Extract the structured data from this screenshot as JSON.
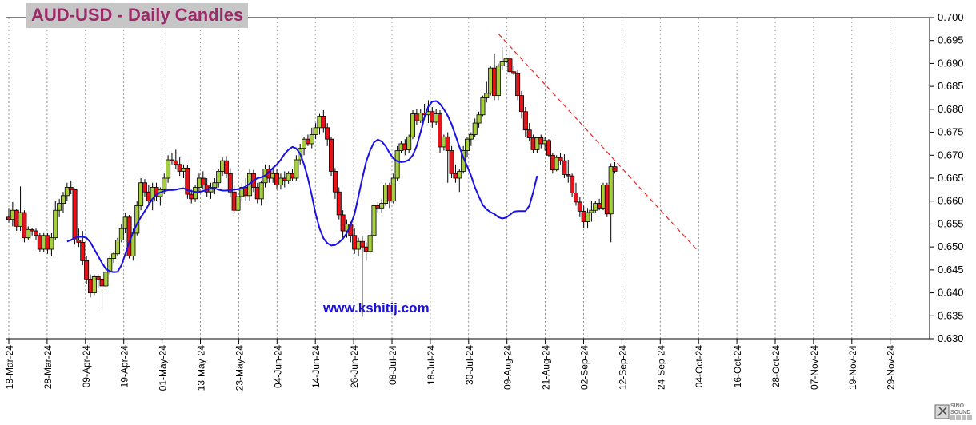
{
  "title": "AUD-USD - Daily Candles",
  "watermark_url": "www.kshitij.com",
  "logo_text": "SINO SOUND",
  "colors": {
    "bull": "#a6cf3f",
    "bear": "#e8121a",
    "ma_line": "#1a10e8",
    "trendline": "#ee2222",
    "grid": "#7f7f7f",
    "title_text": "#9c2a6a",
    "title_bg": "#c6c6c6",
    "url_text": "#1a10d8"
  },
  "chart_data": {
    "type": "candlestick",
    "title": "AUD-USD - Daily Candles",
    "y_axis": {
      "position": "right",
      "min": 0.63,
      "max": 0.7,
      "step": 0.005,
      "tick_labels": [
        "0.700",
        "0.695",
        "0.690",
        "0.685",
        "0.680",
        "0.675",
        "0.670",
        "0.665",
        "0.660",
        "0.655",
        "0.650",
        "0.645",
        "0.640",
        "0.635",
        "0.630"
      ]
    },
    "x_axis": {
      "tick_labels": [
        "18-Mar-24",
        "28-Mar-24",
        "09-Apr-24",
        "19-Apr-24",
        "01-May-24",
        "13-May-24",
        "23-May-24",
        "04-Jun-24",
        "14-Jun-24",
        "26-Jun-24",
        "08-Jul-24",
        "18-Jul-24",
        "30-Jul-24",
        "09-Aug-24",
        "21-Aug-24",
        "02-Sep-24",
        "12-Sep-24",
        "24-Sep-24",
        "04-Oct-24",
        "16-Oct-24",
        "28-Oct-24",
        "07-Nov-24",
        "19-Nov-24",
        "29-Nov-24"
      ]
    },
    "grid": "vertical dashed at date ticks",
    "candles": [
      {
        "o": 0.6565,
        "h": 0.6585,
        "l": 0.6553,
        "c": 0.656
      },
      {
        "o": 0.656,
        "h": 0.6598,
        "l": 0.6545,
        "c": 0.658
      },
      {
        "o": 0.658,
        "h": 0.6583,
        "l": 0.6535,
        "c": 0.6545
      },
      {
        "o": 0.6545,
        "h": 0.6632,
        "l": 0.6535,
        "c": 0.6575
      },
      {
        "o": 0.6575,
        "h": 0.658,
        "l": 0.651,
        "c": 0.652
      },
      {
        "o": 0.652,
        "h": 0.6545,
        "l": 0.6515,
        "c": 0.6538
      },
      {
        "o": 0.6538,
        "h": 0.6542,
        "l": 0.6525,
        "c": 0.6535
      },
      {
        "o": 0.6535,
        "h": 0.654,
        "l": 0.6515,
        "c": 0.6525
      },
      {
        "o": 0.6525,
        "h": 0.653,
        "l": 0.6488,
        "c": 0.6495
      },
      {
        "o": 0.6495,
        "h": 0.653,
        "l": 0.6488,
        "c": 0.6525
      },
      {
        "o": 0.6525,
        "h": 0.653,
        "l": 0.6485,
        "c": 0.6495
      },
      {
        "o": 0.6495,
        "h": 0.653,
        "l": 0.648,
        "c": 0.652
      },
      {
        "o": 0.652,
        "h": 0.66,
        "l": 0.6515,
        "c": 0.658
      },
      {
        "o": 0.658,
        "h": 0.6605,
        "l": 0.6565,
        "c": 0.6595
      },
      {
        "o": 0.6595,
        "h": 0.662,
        "l": 0.6575,
        "c": 0.6612
      },
      {
        "o": 0.6612,
        "h": 0.664,
        "l": 0.66,
        "c": 0.663
      },
      {
        "o": 0.663,
        "h": 0.6645,
        "l": 0.6615,
        "c": 0.6625
      },
      {
        "o": 0.6625,
        "h": 0.6628,
        "l": 0.6505,
        "c": 0.6515
      },
      {
        "o": 0.6515,
        "h": 0.654,
        "l": 0.65,
        "c": 0.651
      },
      {
        "o": 0.651,
        "h": 0.6535,
        "l": 0.646,
        "c": 0.647
      },
      {
        "o": 0.647,
        "h": 0.648,
        "l": 0.642,
        "c": 0.643
      },
      {
        "o": 0.643,
        "h": 0.644,
        "l": 0.639,
        "c": 0.64
      },
      {
        "o": 0.64,
        "h": 0.644,
        "l": 0.6395,
        "c": 0.6435
      },
      {
        "o": 0.6435,
        "h": 0.644,
        "l": 0.641,
        "c": 0.643
      },
      {
        "o": 0.643,
        "h": 0.644,
        "l": 0.6362,
        "c": 0.6415
      },
      {
        "o": 0.6415,
        "h": 0.645,
        "l": 0.641,
        "c": 0.6445
      },
      {
        "o": 0.6445,
        "h": 0.648,
        "l": 0.644,
        "c": 0.6475
      },
      {
        "o": 0.6475,
        "h": 0.649,
        "l": 0.6465,
        "c": 0.6485
      },
      {
        "o": 0.6485,
        "h": 0.652,
        "l": 0.648,
        "c": 0.6515
      },
      {
        "o": 0.6515,
        "h": 0.655,
        "l": 0.651,
        "c": 0.654
      },
      {
        "o": 0.654,
        "h": 0.6575,
        "l": 0.653,
        "c": 0.6565
      },
      {
        "o": 0.6565,
        "h": 0.657,
        "l": 0.6475,
        "c": 0.648
      },
      {
        "o": 0.648,
        "h": 0.654,
        "l": 0.647,
        "c": 0.653
      },
      {
        "o": 0.653,
        "h": 0.66,
        "l": 0.6525,
        "c": 0.659
      },
      {
        "o": 0.659,
        "h": 0.665,
        "l": 0.658,
        "c": 0.664
      },
      {
        "o": 0.664,
        "h": 0.6648,
        "l": 0.661,
        "c": 0.662
      },
      {
        "o": 0.662,
        "h": 0.6635,
        "l": 0.659,
        "c": 0.66
      },
      {
        "o": 0.66,
        "h": 0.664,
        "l": 0.658,
        "c": 0.663
      },
      {
        "o": 0.663,
        "h": 0.664,
        "l": 0.66,
        "c": 0.661
      },
      {
        "o": 0.661,
        "h": 0.663,
        "l": 0.659,
        "c": 0.6625
      },
      {
        "o": 0.6625,
        "h": 0.666,
        "l": 0.6615,
        "c": 0.665
      },
      {
        "o": 0.665,
        "h": 0.67,
        "l": 0.664,
        "c": 0.669
      },
      {
        "o": 0.669,
        "h": 0.6705,
        "l": 0.668,
        "c": 0.6688
      },
      {
        "o": 0.6688,
        "h": 0.6712,
        "l": 0.667,
        "c": 0.668
      },
      {
        "o": 0.668,
        "h": 0.6695,
        "l": 0.6655,
        "c": 0.6665
      },
      {
        "o": 0.6665,
        "h": 0.668,
        "l": 0.665,
        "c": 0.6672
      },
      {
        "o": 0.6672,
        "h": 0.6678,
        "l": 0.6605,
        "c": 0.6615
      },
      {
        "o": 0.6615,
        "h": 0.6625,
        "l": 0.6595,
        "c": 0.6605
      },
      {
        "o": 0.6605,
        "h": 0.6635,
        "l": 0.6598,
        "c": 0.663
      },
      {
        "o": 0.663,
        "h": 0.666,
        "l": 0.662,
        "c": 0.665
      },
      {
        "o": 0.665,
        "h": 0.6665,
        "l": 0.6625,
        "c": 0.6635
      },
      {
        "o": 0.6635,
        "h": 0.665,
        "l": 0.661,
        "c": 0.662
      },
      {
        "o": 0.662,
        "h": 0.664,
        "l": 0.6605,
        "c": 0.663
      },
      {
        "o": 0.663,
        "h": 0.665,
        "l": 0.6615,
        "c": 0.664
      },
      {
        "o": 0.664,
        "h": 0.667,
        "l": 0.663,
        "c": 0.6665
      },
      {
        "o": 0.6665,
        "h": 0.6695,
        "l": 0.6655,
        "c": 0.6688
      },
      {
        "o": 0.6688,
        "h": 0.6698,
        "l": 0.665,
        "c": 0.666
      },
      {
        "o": 0.666,
        "h": 0.6672,
        "l": 0.661,
        "c": 0.662
      },
      {
        "o": 0.662,
        "h": 0.6635,
        "l": 0.6575,
        "c": 0.658
      },
      {
        "o": 0.658,
        "h": 0.662,
        "l": 0.6575,
        "c": 0.661
      },
      {
        "o": 0.661,
        "h": 0.664,
        "l": 0.66,
        "c": 0.663
      },
      {
        "o": 0.663,
        "h": 0.665,
        "l": 0.66,
        "c": 0.6612
      },
      {
        "o": 0.6612,
        "h": 0.667,
        "l": 0.66,
        "c": 0.666
      },
      {
        "o": 0.666,
        "h": 0.6668,
        "l": 0.662,
        "c": 0.663
      },
      {
        "o": 0.663,
        "h": 0.664,
        "l": 0.6595,
        "c": 0.6605
      },
      {
        "o": 0.6605,
        "h": 0.6645,
        "l": 0.659,
        "c": 0.664
      },
      {
        "o": 0.664,
        "h": 0.668,
        "l": 0.663,
        "c": 0.667
      },
      {
        "o": 0.667,
        "h": 0.6678,
        "l": 0.664,
        "c": 0.665
      },
      {
        "o": 0.665,
        "h": 0.6675,
        "l": 0.664,
        "c": 0.666
      },
      {
        "o": 0.666,
        "h": 0.667,
        "l": 0.6625,
        "c": 0.6635
      },
      {
        "o": 0.6635,
        "h": 0.666,
        "l": 0.6625,
        "c": 0.665
      },
      {
        "o": 0.665,
        "h": 0.6665,
        "l": 0.663,
        "c": 0.6645
      },
      {
        "o": 0.6645,
        "h": 0.6665,
        "l": 0.6638,
        "c": 0.666
      },
      {
        "o": 0.666,
        "h": 0.667,
        "l": 0.6645,
        "c": 0.665
      },
      {
        "o": 0.665,
        "h": 0.67,
        "l": 0.6645,
        "c": 0.669
      },
      {
        "o": 0.669,
        "h": 0.6725,
        "l": 0.668,
        "c": 0.6715
      },
      {
        "o": 0.6715,
        "h": 0.674,
        "l": 0.67,
        "c": 0.6735
      },
      {
        "o": 0.6735,
        "h": 0.6745,
        "l": 0.672,
        "c": 0.6725
      },
      {
        "o": 0.6725,
        "h": 0.676,
        "l": 0.6715,
        "c": 0.6745
      },
      {
        "o": 0.6745,
        "h": 0.677,
        "l": 0.6735,
        "c": 0.676
      },
      {
        "o": 0.676,
        "h": 0.679,
        "l": 0.6745,
        "c": 0.6785
      },
      {
        "o": 0.6785,
        "h": 0.6798,
        "l": 0.675,
        "c": 0.676
      },
      {
        "o": 0.676,
        "h": 0.677,
        "l": 0.672,
        "c": 0.6735
      },
      {
        "o": 0.6735,
        "h": 0.674,
        "l": 0.6655,
        "c": 0.6665
      },
      {
        "o": 0.6665,
        "h": 0.6672,
        "l": 0.6605,
        "c": 0.662
      },
      {
        "o": 0.662,
        "h": 0.663,
        "l": 0.656,
        "c": 0.657
      },
      {
        "o": 0.657,
        "h": 0.658,
        "l": 0.652,
        "c": 0.6535
      },
      {
        "o": 0.6535,
        "h": 0.656,
        "l": 0.652,
        "c": 0.655
      },
      {
        "o": 0.655,
        "h": 0.6555,
        "l": 0.651,
        "c": 0.6525
      },
      {
        "o": 0.6525,
        "h": 0.654,
        "l": 0.6485,
        "c": 0.6495
      },
      {
        "o": 0.6495,
        "h": 0.652,
        "l": 0.648,
        "c": 0.6512
      },
      {
        "o": 0.6512,
        "h": 0.6525,
        "l": 0.6348,
        "c": 0.65
      },
      {
        "o": 0.65,
        "h": 0.651,
        "l": 0.647,
        "c": 0.649
      },
      {
        "o": 0.649,
        "h": 0.653,
        "l": 0.6485,
        "c": 0.6525
      },
      {
        "o": 0.6525,
        "h": 0.66,
        "l": 0.652,
        "c": 0.659
      },
      {
        "o": 0.659,
        "h": 0.6598,
        "l": 0.6575,
        "c": 0.6585
      },
      {
        "o": 0.6585,
        "h": 0.6605,
        "l": 0.6575,
        "c": 0.6595
      },
      {
        "o": 0.6595,
        "h": 0.664,
        "l": 0.659,
        "c": 0.6635
      },
      {
        "o": 0.6635,
        "h": 0.664,
        "l": 0.6585,
        "c": 0.66
      },
      {
        "o": 0.66,
        "h": 0.666,
        "l": 0.6595,
        "c": 0.665
      },
      {
        "o": 0.665,
        "h": 0.672,
        "l": 0.6645,
        "c": 0.671
      },
      {
        "o": 0.671,
        "h": 0.673,
        "l": 0.6705,
        "c": 0.6725
      },
      {
        "o": 0.6725,
        "h": 0.6735,
        "l": 0.67,
        "c": 0.6712
      },
      {
        "o": 0.6712,
        "h": 0.6745,
        "l": 0.6705,
        "c": 0.674
      },
      {
        "o": 0.674,
        "h": 0.6798,
        "l": 0.6735,
        "c": 0.679
      },
      {
        "o": 0.679,
        "h": 0.68,
        "l": 0.6765,
        "c": 0.6775
      },
      {
        "o": 0.6775,
        "h": 0.68,
        "l": 0.677,
        "c": 0.6792
      },
      {
        "o": 0.6792,
        "h": 0.6812,
        "l": 0.678,
        "c": 0.6788
      },
      {
        "o": 0.6788,
        "h": 0.682,
        "l": 0.677,
        "c": 0.6795
      },
      {
        "o": 0.6795,
        "h": 0.6805,
        "l": 0.676,
        "c": 0.6772
      },
      {
        "o": 0.6772,
        "h": 0.68,
        "l": 0.6765,
        "c": 0.679
      },
      {
        "o": 0.679,
        "h": 0.6798,
        "l": 0.6705,
        "c": 0.6718
      },
      {
        "o": 0.6718,
        "h": 0.6745,
        "l": 0.671,
        "c": 0.674
      },
      {
        "o": 0.674,
        "h": 0.675,
        "l": 0.664,
        "c": 0.671
      },
      {
        "o": 0.671,
        "h": 0.672,
        "l": 0.665,
        "c": 0.666
      },
      {
        "o": 0.666,
        "h": 0.668,
        "l": 0.664,
        "c": 0.665
      },
      {
        "o": 0.665,
        "h": 0.667,
        "l": 0.662,
        "c": 0.6665
      },
      {
        "o": 0.6665,
        "h": 0.672,
        "l": 0.666,
        "c": 0.671
      },
      {
        "o": 0.671,
        "h": 0.674,
        "l": 0.6695,
        "c": 0.6735
      },
      {
        "o": 0.6735,
        "h": 0.675,
        "l": 0.672,
        "c": 0.6745
      },
      {
        "o": 0.6745,
        "h": 0.678,
        "l": 0.674,
        "c": 0.677
      },
      {
        "o": 0.677,
        "h": 0.6795,
        "l": 0.676,
        "c": 0.6788
      },
      {
        "o": 0.6788,
        "h": 0.683,
        "l": 0.6785,
        "c": 0.6825
      },
      {
        "o": 0.6825,
        "h": 0.686,
        "l": 0.6815,
        "c": 0.6835
      },
      {
        "o": 0.6835,
        "h": 0.6895,
        "l": 0.683,
        "c": 0.689
      },
      {
        "o": 0.689,
        "h": 0.692,
        "l": 0.682,
        "c": 0.683
      },
      {
        "o": 0.683,
        "h": 0.69,
        "l": 0.682,
        "c": 0.6895
      },
      {
        "o": 0.6895,
        "h": 0.6935,
        "l": 0.6885,
        "c": 0.6905
      },
      {
        "o": 0.6905,
        "h": 0.6945,
        "l": 0.689,
        "c": 0.691
      },
      {
        "o": 0.691,
        "h": 0.693,
        "l": 0.6875,
        "c": 0.6882
      },
      {
        "o": 0.6882,
        "h": 0.6895,
        "l": 0.6875,
        "c": 0.6878
      },
      {
        "o": 0.6878,
        "h": 0.6885,
        "l": 0.682,
        "c": 0.683
      },
      {
        "o": 0.683,
        "h": 0.684,
        "l": 0.678,
        "c": 0.6795
      },
      {
        "o": 0.6795,
        "h": 0.6805,
        "l": 0.674,
        "c": 0.6755
      },
      {
        "o": 0.6755,
        "h": 0.677,
        "l": 0.673,
        "c": 0.6738
      },
      {
        "o": 0.6738,
        "h": 0.6745,
        "l": 0.6705,
        "c": 0.6712
      },
      {
        "o": 0.6712,
        "h": 0.674,
        "l": 0.6705,
        "c": 0.6738
      },
      {
        "o": 0.6738,
        "h": 0.6745,
        "l": 0.6715,
        "c": 0.6725
      },
      {
        "o": 0.6725,
        "h": 0.674,
        "l": 0.671,
        "c": 0.6732
      },
      {
        "o": 0.6732,
        "h": 0.6735,
        "l": 0.6695,
        "c": 0.67
      },
      {
        "o": 0.67,
        "h": 0.6705,
        "l": 0.666,
        "c": 0.6668
      },
      {
        "o": 0.6668,
        "h": 0.67,
        "l": 0.6665,
        "c": 0.6695
      },
      {
        "o": 0.6695,
        "h": 0.6705,
        "l": 0.668,
        "c": 0.6688
      },
      {
        "o": 0.6688,
        "h": 0.6702,
        "l": 0.665,
        "c": 0.6658
      },
      {
        "o": 0.6658,
        "h": 0.669,
        "l": 0.664,
        "c": 0.6655
      },
      {
        "o": 0.6655,
        "h": 0.666,
        "l": 0.661,
        "c": 0.6618
      },
      {
        "o": 0.6618,
        "h": 0.664,
        "l": 0.659,
        "c": 0.6598
      },
      {
        "o": 0.6598,
        "h": 0.661,
        "l": 0.6565,
        "c": 0.6578
      },
      {
        "o": 0.6578,
        "h": 0.659,
        "l": 0.654,
        "c": 0.6555
      },
      {
        "o": 0.6555,
        "h": 0.6585,
        "l": 0.654,
        "c": 0.6575
      },
      {
        "o": 0.6575,
        "h": 0.66,
        "l": 0.6555,
        "c": 0.658
      },
      {
        "o": 0.658,
        "h": 0.66,
        "l": 0.6575,
        "c": 0.6595
      },
      {
        "o": 0.6595,
        "h": 0.6605,
        "l": 0.658,
        "c": 0.6585
      },
      {
        "o": 0.6585,
        "h": 0.664,
        "l": 0.658,
        "c": 0.6635
      },
      {
        "o": 0.6635,
        "h": 0.664,
        "l": 0.6565,
        "c": 0.6572
      },
      {
        "o": 0.6572,
        "h": 0.6682,
        "l": 0.651,
        "c": 0.6675
      },
      {
        "o": 0.6675,
        "h": 0.6685,
        "l": 0.666,
        "c": 0.6665
      }
    ],
    "moving_average": [
      0.6512,
      0.6515,
      0.652,
      0.6522,
      0.6522,
      0.652,
      0.651,
      0.6495,
      0.648,
      0.6465,
      0.6452,
      0.6447,
      0.6445,
      0.6446,
      0.646,
      0.6485,
      0.651,
      0.6532,
      0.655,
      0.6565,
      0.6578,
      0.6592,
      0.6605,
      0.6614,
      0.6619,
      0.6622,
      0.6624,
      0.6624,
      0.6625,
      0.6627,
      0.6628,
      0.6624,
      0.6622,
      0.662,
      0.662,
      0.6622,
      0.6625,
      0.6628,
      0.6628,
      0.6625,
      0.6623,
      0.6623,
      0.6624,
      0.6625,
      0.6626,
      0.6628,
      0.6632,
      0.6638,
      0.6645,
      0.665,
      0.6652,
      0.6656,
      0.6664,
      0.6672,
      0.668,
      0.669,
      0.6703,
      0.6712,
      0.6718,
      0.6715,
      0.6703,
      0.668,
      0.665,
      0.6612,
      0.6572,
      0.654,
      0.6519,
      0.6508,
      0.6503,
      0.6504,
      0.651,
      0.6518,
      0.653,
      0.6548,
      0.6572,
      0.661,
      0.665,
      0.6686,
      0.671,
      0.6728,
      0.6734,
      0.673,
      0.672,
      0.6705,
      0.6693,
      0.6687,
      0.6685,
      0.6686,
      0.669,
      0.67,
      0.672,
      0.675,
      0.6783,
      0.6806,
      0.6817,
      0.6818,
      0.6812,
      0.68,
      0.6786,
      0.6767,
      0.6743,
      0.6718,
      0.6695,
      0.6676,
      0.6655,
      0.663,
      0.661,
      0.6592,
      0.6582,
      0.6576,
      0.6572,
      0.6565,
      0.6562,
      0.6564,
      0.657,
      0.6577,
      0.6578,
      0.6578,
      0.6578,
      0.659,
      0.662,
      0.6655
    ],
    "trendline": {
      "from": {
        "index": 126,
        "y": 0.6965
      },
      "to": {
        "index": 161,
        "y": 0.6495
      },
      "style": "dashed"
    }
  }
}
